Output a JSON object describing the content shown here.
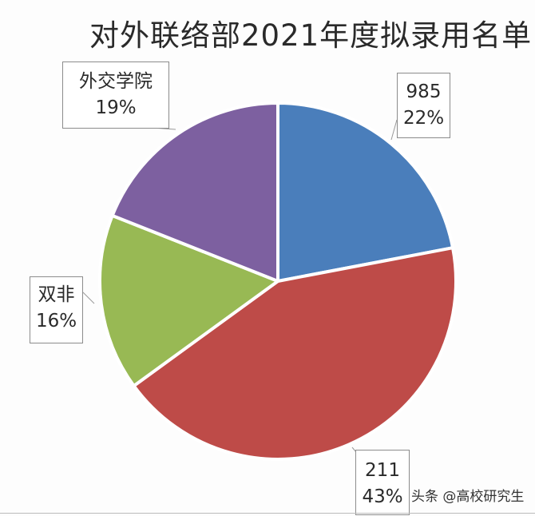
{
  "chart_data": {
    "type": "pie",
    "title": "对外联络部2021年度拟录用名单",
    "categories": [
      "985",
      "211",
      "双非",
      "外交学院"
    ],
    "values": [
      22,
      43,
      16,
      19
    ],
    "unit": "%",
    "colors": [
      "#4a7ebb",
      "#be4b48",
      "#98b954",
      "#7d60a0"
    ],
    "start_angle": "12 o'clock",
    "direction": "clockwise",
    "legend": "none (data labels with leader lines)"
  },
  "labels": [
    {
      "name": "985",
      "pct": "22%"
    },
    {
      "name": "211",
      "pct": "43%"
    },
    {
      "name": "双非",
      "pct": "16%"
    },
    {
      "name": "外交学院",
      "pct": "19%"
    }
  ],
  "watermark": "头条 @高校研究生"
}
